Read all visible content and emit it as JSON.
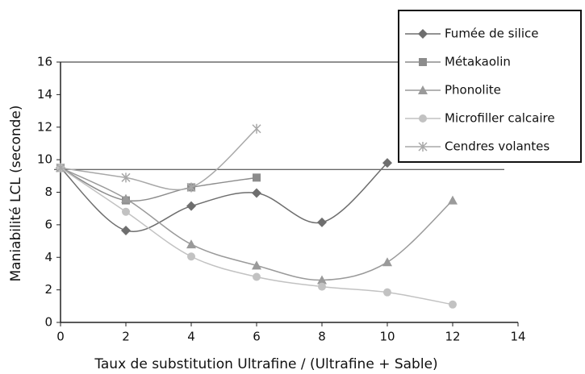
{
  "chart_data": {
    "type": "line",
    "xlabel": "Taux de substitution Ultrafine / (Ultrafine + Sable)",
    "ylabel": "Maniabilité LCL (seconde)",
    "xlim": [
      0,
      14
    ],
    "xticks": [
      0,
      2,
      4,
      6,
      8,
      10,
      12,
      14
    ],
    "ylim": [
      0,
      16
    ],
    "yticks": [
      0,
      2,
      4,
      6,
      8,
      10,
      12,
      14,
      16
    ],
    "reference_line": 9.4,
    "legend": "top-right",
    "series": [
      {
        "name": "Fumée de silice",
        "color": "#6e6e6e",
        "marker": "diamond",
        "x": [
          0,
          2,
          4,
          6,
          8,
          10
        ],
        "values": [
          9.5,
          5.65,
          7.15,
          7.95,
          6.15,
          9.8
        ]
      },
      {
        "name": "Métakaolin",
        "color": "#8c8c8c",
        "marker": "square",
        "x": [
          0,
          2,
          4,
          6
        ],
        "values": [
          9.5,
          7.5,
          8.3,
          8.9
        ]
      },
      {
        "name": "Phonolite",
        "color": "#9a9a9a",
        "marker": "triangle",
        "x": [
          0,
          2,
          4,
          6,
          8,
          10,
          12
        ],
        "values": [
          9.5,
          7.6,
          4.8,
          3.5,
          2.6,
          3.7,
          7.5
        ]
      },
      {
        "name": "Microfiller calcaire",
        "color": "#c2c2c2",
        "marker": "circle",
        "x": [
          0,
          2,
          4,
          6,
          8,
          10,
          12
        ],
        "values": [
          9.5,
          6.8,
          4.05,
          2.8,
          2.2,
          1.85,
          1.1
        ]
      },
      {
        "name": "Cendres volantes",
        "color": "#a8a8a8",
        "marker": "star",
        "x": [
          0,
          2,
          4,
          6
        ],
        "values": [
          9.5,
          8.9,
          8.3,
          11.9
        ]
      }
    ]
  }
}
